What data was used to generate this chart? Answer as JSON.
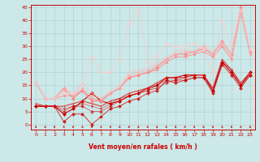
{
  "xlabel": "Vent moyen/en rafales ( km/h )",
  "xlim": [
    -0.5,
    23.5
  ],
  "ylim": [
    -2,
    46
  ],
  "yticks": [
    0,
    5,
    10,
    15,
    20,
    25,
    30,
    35,
    40,
    45
  ],
  "xticks": [
    0,
    1,
    2,
    3,
    4,
    5,
    6,
    7,
    8,
    9,
    10,
    11,
    12,
    13,
    14,
    15,
    16,
    17,
    18,
    19,
    20,
    21,
    22,
    23
  ],
  "bg_color": "#cce8e8",
  "grid_color": "#aacccc",
  "lines": [
    {
      "x": [
        0,
        1,
        2,
        3,
        4,
        5,
        6,
        7,
        8,
        9,
        10,
        11,
        12,
        13,
        14,
        15,
        16,
        17,
        18,
        19,
        20,
        21,
        22,
        23
      ],
      "y": [
        7,
        7,
        7,
        4,
        6,
        9,
        12,
        9,
        8,
        9,
        11,
        12,
        14,
        15,
        18,
        18,
        19,
        19,
        19,
        13,
        24,
        20,
        15,
        20
      ],
      "color": "#cc0000",
      "lw": 0.8,
      "alpha": 1.0,
      "ms": 2.0,
      "marker": "D"
    },
    {
      "x": [
        0,
        1,
        2,
        3,
        4,
        5,
        6,
        7,
        8,
        9,
        10,
        11,
        12,
        13,
        14,
        15,
        16,
        17,
        18,
        19,
        20,
        21,
        22,
        23
      ],
      "y": [
        7,
        7,
        7,
        1,
        4,
        4,
        0,
        3,
        6,
        7,
        9,
        10,
        12,
        13,
        17,
        16,
        17,
        18,
        18,
        12,
        23,
        19,
        14,
        19
      ],
      "color": "#cc0000",
      "lw": 0.7,
      "alpha": 0.75,
      "ms": 2.0,
      "marker": "D"
    },
    {
      "x": [
        0,
        1,
        2,
        3,
        4,
        5,
        6,
        7,
        8,
        9,
        10,
        11,
        12,
        13,
        14,
        15,
        16,
        17,
        18,
        19,
        20,
        21,
        22,
        23
      ],
      "y": [
        7,
        7,
        7,
        5,
        7,
        7,
        5,
        5,
        7,
        9,
        11,
        12,
        13,
        14,
        16,
        17,
        17,
        18,
        18,
        13,
        24,
        20,
        15,
        19
      ],
      "color": "#cc0000",
      "lw": 0.6,
      "alpha": 0.6,
      "ms": 2.0,
      "marker": "D"
    },
    {
      "x": [
        0,
        1,
        2,
        3,
        4,
        5,
        6,
        7,
        8,
        9,
        10,
        11,
        12,
        13,
        14,
        15,
        16,
        17,
        18,
        19,
        20,
        21,
        22,
        23
      ],
      "y": [
        7,
        7,
        7,
        6,
        7,
        8,
        7,
        6,
        8,
        10,
        11,
        12,
        13,
        15,
        17,
        17,
        18,
        19,
        19,
        13,
        24,
        21,
        15,
        20
      ],
      "color": "#cc0000",
      "lw": 0.6,
      "alpha": 0.5,
      "ms": 1.5,
      "marker": "D"
    },
    {
      "x": [
        0,
        1,
        2,
        3,
        4,
        5,
        6,
        7,
        8,
        9,
        10,
        11,
        12,
        13,
        14,
        15,
        16,
        17,
        18,
        19,
        20,
        21,
        22,
        23
      ],
      "y": [
        8,
        7,
        7,
        7,
        8,
        9,
        8,
        7,
        9,
        10,
        12,
        13,
        14,
        16,
        18,
        18,
        18,
        19,
        19,
        14,
        25,
        21,
        16,
        20
      ],
      "color": "#dd2222",
      "lw": 0.8,
      "alpha": 0.85,
      "ms": 2.0,
      "marker": "+"
    },
    {
      "x": [
        0,
        1,
        2,
        3,
        4,
        5,
        6,
        7,
        8,
        9,
        10,
        11,
        12,
        13,
        14,
        15,
        16,
        17,
        18,
        19,
        20,
        21,
        22,
        23
      ],
      "y": [
        16,
        10,
        10,
        14,
        10,
        13,
        9,
        9,
        12,
        14,
        18,
        19,
        20,
        22,
        25,
        27,
        27,
        28,
        29,
        27,
        32,
        27,
        45,
        28
      ],
      "color": "#ff8888",
      "lw": 0.8,
      "alpha": 1.0,
      "ms": 2.0,
      "marker": "D"
    },
    {
      "x": [
        0,
        1,
        2,
        3,
        4,
        5,
        6,
        7,
        8,
        9,
        10,
        11,
        12,
        13,
        14,
        15,
        16,
        17,
        18,
        19,
        20,
        21,
        22,
        23
      ],
      "y": [
        16,
        10,
        10,
        11,
        11,
        13,
        10,
        9,
        12,
        14,
        18,
        19,
        20,
        21,
        24,
        26,
        26,
        27,
        28,
        26,
        30,
        25,
        43,
        27
      ],
      "color": "#ff8888",
      "lw": 0.7,
      "alpha": 0.85,
      "ms": 1.5,
      "marker": "D"
    },
    {
      "x": [
        0,
        1,
        2,
        3,
        4,
        5,
        6,
        7,
        8,
        9,
        10,
        11,
        12,
        13,
        14,
        15,
        16,
        17,
        18,
        19,
        20,
        21,
        22,
        23
      ],
      "y": [
        16,
        10,
        10,
        13,
        11,
        14,
        11,
        10,
        12,
        14,
        19,
        20,
        21,
        23,
        25,
        27,
        28,
        28,
        30,
        27,
        31,
        26,
        44,
        27
      ],
      "color": "#ffaaaa",
      "lw": 0.7,
      "alpha": 0.8,
      "ms": 1.5,
      "marker": "D"
    },
    {
      "x": [
        0,
        1,
        2,
        3,
        4,
        5,
        6,
        7,
        8,
        9,
        10,
        11,
        12,
        13,
        14,
        15,
        16,
        17,
        18,
        19,
        20,
        21,
        22,
        23
      ],
      "y": [
        16,
        10,
        10,
        12,
        12,
        15,
        26,
        20,
        20,
        25,
        39,
        44,
        24,
        26,
        31,
        30,
        30,
        31,
        29,
        20,
        40,
        30,
        44,
        29
      ],
      "color": "#ffcccc",
      "lw": 0.8,
      "alpha": 0.7,
      "ms": 2.0,
      "marker": "D"
    },
    {
      "x": [
        0,
        1,
        2,
        3,
        4,
        5,
        6,
        7,
        8,
        9,
        10,
        11,
        12,
        13,
        14,
        15,
        16,
        17,
        18,
        19,
        20,
        21,
        22,
        23
      ],
      "y": [
        16,
        10,
        10,
        14,
        12,
        16,
        12,
        10,
        13,
        15,
        20,
        21,
        22,
        24,
        26,
        28,
        29,
        28,
        31,
        28,
        32,
        27,
        44,
        28
      ],
      "color": "#ffbbbb",
      "lw": 0.7,
      "alpha": 0.65,
      "ms": 1.5,
      "marker": "+"
    }
  ],
  "arrow_color": "#cc0000"
}
